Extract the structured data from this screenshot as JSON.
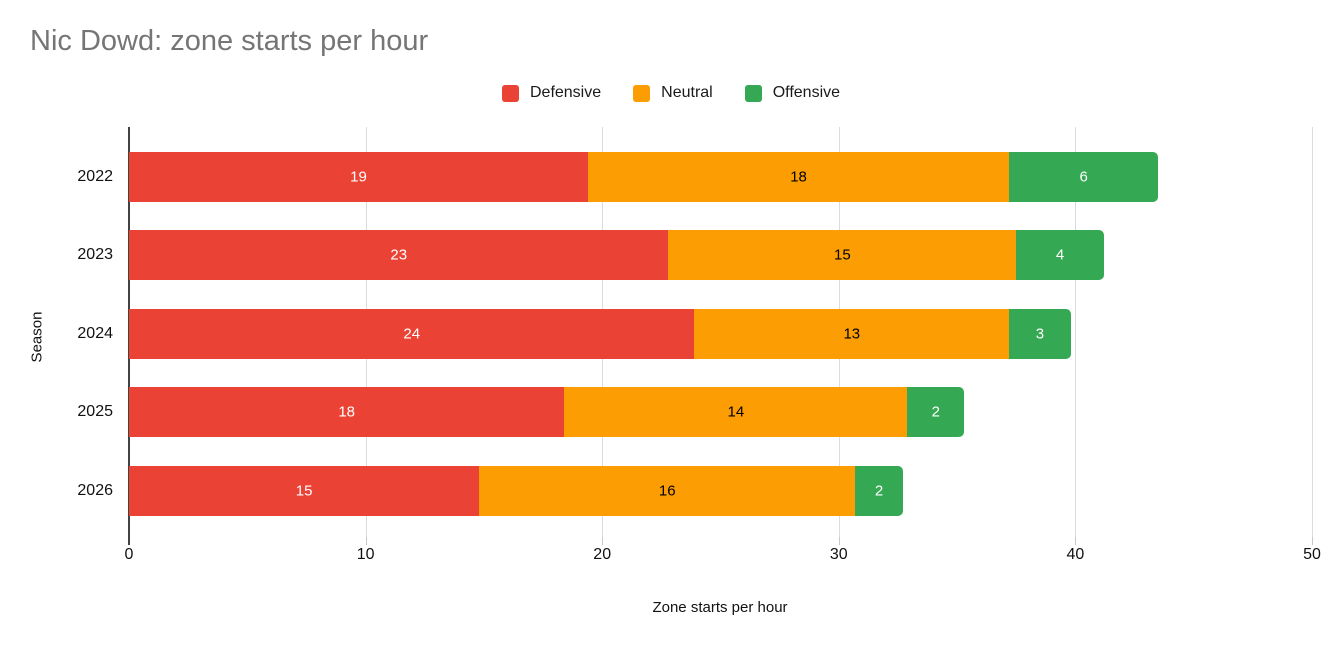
{
  "title": "Nic Dowd: zone starts per hour",
  "chart_data": {
    "type": "bar",
    "orientation": "horizontal",
    "stacked": true,
    "title": "Nic Dowd: zone starts per hour",
    "categories": [
      "2022",
      "2023",
      "2024",
      "2025",
      "2026"
    ],
    "series": [
      {
        "name": "Defensive",
        "color": "#EA4335",
        "label_color": "#FFFFFF",
        "values": [
          19,
          23,
          24,
          18,
          15
        ],
        "values_precise": [
          19.4,
          22.8,
          23.9,
          18.4,
          14.8
        ]
      },
      {
        "name": "Neutral",
        "color": "#FC9E03",
        "label_color": "#000000",
        "values": [
          18,
          15,
          13,
          14,
          16
        ],
        "values_precise": [
          17.8,
          14.7,
          13.3,
          14.5,
          15.9
        ]
      },
      {
        "name": "Offensive",
        "color": "#34A853",
        "label_color": "#FFFFFF",
        "values": [
          6,
          4,
          3,
          2,
          2
        ],
        "values_precise": [
          6.3,
          3.7,
          2.6,
          2.4,
          2.0
        ]
      }
    ],
    "totals_approx": [
      43.5,
      41.2,
      39.8,
      35.3,
      32.7
    ],
    "xlabel": "Zone starts per hour",
    "ylabel": "Season",
    "x_ticks": [
      0,
      10,
      20,
      30,
      40,
      50
    ],
    "xlim": [
      0,
      50
    ],
    "legend_position": "top",
    "grid": "vertical",
    "colors": {
      "title": "#757575",
      "axis_line": "#424242",
      "gridline": "#DADCE0",
      "tick": "#C7C7C7",
      "tick_label": "#111111",
      "background": "#FFFFFF"
    }
  }
}
